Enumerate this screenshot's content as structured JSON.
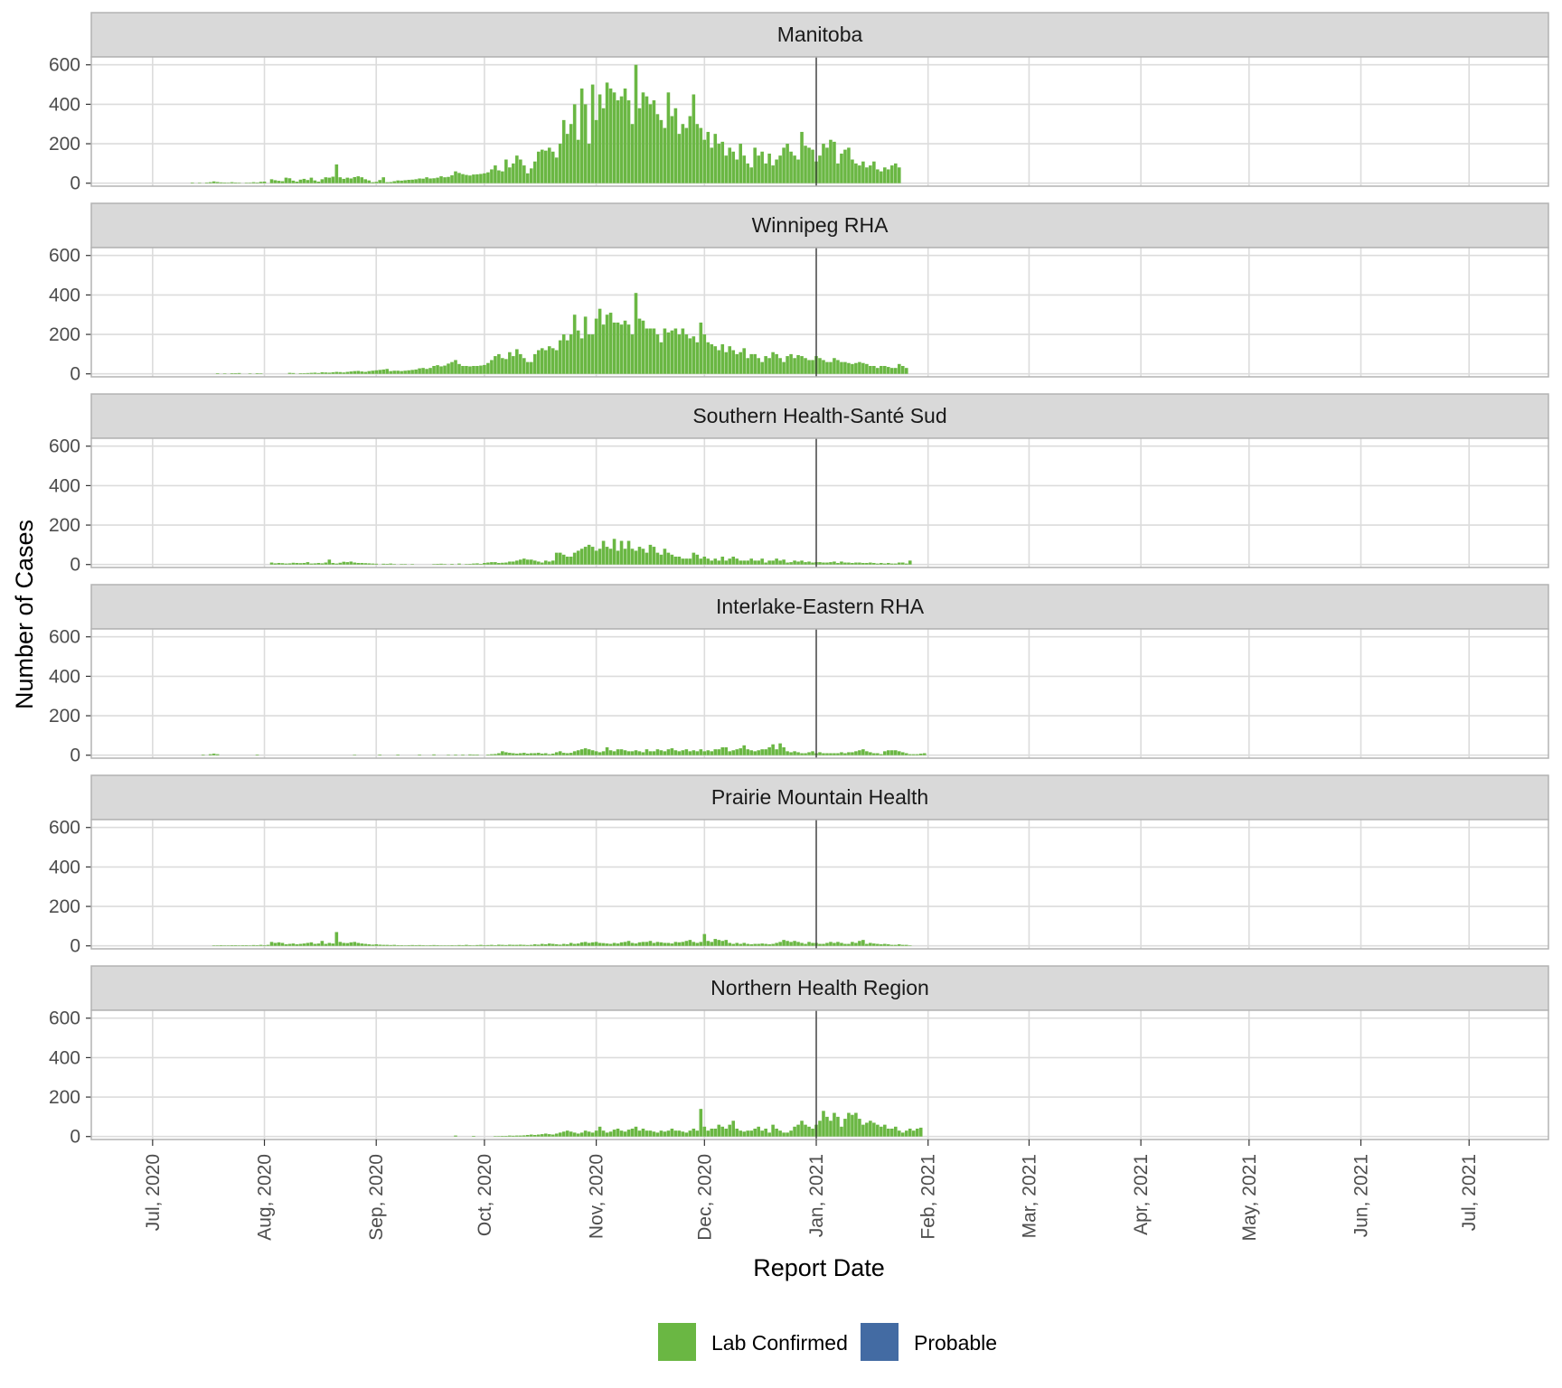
{
  "chart_data": {
    "type": "bar",
    "xlabel": "Report Date",
    "ylabel": "Number of Cases",
    "xlim": [
      "2020-06-14",
      "2021-07-23"
    ],
    "ylim": [
      -15,
      640
    ],
    "y_ticks": [
      0,
      200,
      400,
      600
    ],
    "x_ticks": [
      {
        "date": "2020-07-01",
        "label": "Jul, 2020"
      },
      {
        "date": "2020-08-01",
        "label": "Aug, 2020"
      },
      {
        "date": "2020-09-01",
        "label": "Sep, 2020"
      },
      {
        "date": "2020-10-01",
        "label": "Oct, 2020"
      },
      {
        "date": "2020-11-01",
        "label": "Nov, 2020"
      },
      {
        "date": "2020-12-01",
        "label": "Dec, 2020"
      },
      {
        "date": "2021-01-01",
        "label": "Jan, 2021"
      },
      {
        "date": "2021-02-01",
        "label": "Feb, 2021"
      },
      {
        "date": "2021-03-01",
        "label": "Mar, 2021"
      },
      {
        "date": "2021-04-01",
        "label": "Apr, 2021"
      },
      {
        "date": "2021-05-01",
        "label": "May, 2021"
      },
      {
        "date": "2021-06-01",
        "label": "Jun, 2021"
      },
      {
        "date": "2021-07-01",
        "label": "Jul, 2021"
      }
    ],
    "reference_line_date": "2021-01-01",
    "grid": true,
    "legend_position": "bottom",
    "legend": [
      {
        "label": "Lab Confirmed",
        "color": "#6ab743"
      },
      {
        "label": "Probable",
        "color": "#436ba3"
      }
    ],
    "series_start_date": "2020-07-12",
    "panels": [
      {
        "title": "Manitoba",
        "values": [
          3,
          0,
          2,
          0,
          3,
          5,
          9,
          6,
          4,
          3,
          2,
          5,
          3,
          2,
          0,
          1,
          2,
          5,
          3,
          7,
          8,
          0,
          20,
          15,
          12,
          10,
          28,
          25,
          13,
          8,
          18,
          22,
          16,
          28,
          14,
          8,
          20,
          30,
          28,
          33,
          95,
          30,
          22,
          28,
          24,
          31,
          35,
          30,
          20,
          14,
          5,
          7,
          16,
          30,
          5,
          6,
          10,
          14,
          13,
          15,
          17,
          18,
          20,
          24,
          23,
          30,
          24,
          25,
          28,
          35,
          30,
          32,
          40,
          60,
          52,
          46,
          42,
          39,
          44,
          45,
          47,
          50,
          55,
          70,
          90,
          65,
          60,
          120,
          80,
          100,
          140,
          120,
          90,
          50,
          75,
          110,
          160,
          170,
          165,
          180,
          160,
          130,
          200,
          320,
          250,
          300,
          400,
          220,
          480,
          400,
          200,
          500,
          320,
          450,
          380,
          510,
          480,
          460,
          420,
          440,
          480,
          420,
          300,
          600,
          380,
          460,
          440,
          400,
          420,
          350,
          320,
          280,
          460,
          340,
          380,
          250,
          300,
          280,
          340,
          450,
          300,
          280,
          220,
          260,
          180,
          250,
          200,
          210,
          140,
          180,
          160,
          120,
          200,
          140,
          100,
          80,
          180,
          140,
          160,
          100,
          150,
          90,
          120,
          140,
          180,
          200,
          160,
          140,
          120,
          260,
          190,
          180,
          170,
          110,
          140,
          200,
          180,
          220,
          210,
          100,
          150,
          170,
          180,
          120,
          100,
          90,
          110,
          80,
          90,
          110,
          70,
          60,
          80,
          70,
          90,
          100,
          80
        ]
      },
      {
        "title": "Winnipeg RHA",
        "values": [
          0,
          0,
          0,
          0,
          0,
          0,
          0,
          3,
          0,
          2,
          0,
          3,
          3,
          4,
          0,
          0,
          2,
          0,
          3,
          2,
          0,
          0,
          0,
          0,
          0,
          0,
          0,
          5,
          4,
          0,
          3,
          3,
          4,
          5,
          6,
          4,
          8,
          7,
          6,
          8,
          10,
          9,
          7,
          10,
          12,
          14,
          15,
          12,
          10,
          14,
          16,
          18,
          20,
          22,
          25,
          14,
          16,
          16,
          14,
          16,
          18,
          20,
          22,
          28,
          30,
          25,
          30,
          40,
          44,
          38,
          42,
          52,
          60,
          70,
          50,
          40,
          40,
          38,
          40,
          40,
          42,
          45,
          55,
          70,
          90,
          100,
          80,
          75,
          110,
          90,
          125,
          100,
          80,
          60,
          60,
          100,
          120,
          130,
          120,
          140,
          130,
          120,
          170,
          200,
          170,
          200,
          300,
          220,
          180,
          290,
          200,
          200,
          280,
          330,
          250,
          300,
          310,
          260,
          260,
          250,
          270,
          250,
          200,
          410,
          280,
          270,
          230,
          230,
          230,
          200,
          160,
          230,
          210,
          220,
          230,
          200,
          230,
          200,
          180,
          190,
          160,
          260,
          200,
          160,
          150,
          140,
          120,
          150,
          110,
          140,
          120,
          100,
          110,
          130,
          80,
          100,
          100,
          80,
          60,
          90,
          80,
          110,
          100,
          80,
          60,
          90,
          100,
          80,
          95,
          90,
          80,
          70,
          70,
          90,
          80,
          70,
          60,
          60,
          80,
          70,
          60,
          60,
          55,
          50,
          55,
          60,
          55,
          50,
          40,
          40,
          30,
          40,
          40,
          35,
          30,
          30,
          50,
          40,
          30
        ]
      },
      {
        "title": "Southern Health-Santé Sud",
        "values": [
          0,
          0,
          0,
          0,
          0,
          0,
          0,
          0,
          0,
          0,
          0,
          0,
          0,
          0,
          0,
          0,
          0,
          0,
          0,
          0,
          0,
          0,
          10,
          6,
          8,
          7,
          5,
          6,
          9,
          8,
          7,
          8,
          12,
          5,
          6,
          8,
          6,
          10,
          25,
          8,
          5,
          9,
          14,
          12,
          15,
          10,
          8,
          8,
          7,
          6,
          5,
          4,
          0,
          4,
          3,
          5,
          2,
          0,
          2,
          2,
          0,
          2,
          0,
          0,
          0,
          0,
          0,
          2,
          3,
          4,
          2,
          0,
          3,
          0,
          5,
          0,
          2,
          3,
          5,
          6,
          3,
          8,
          10,
          12,
          12,
          8,
          9,
          10,
          15,
          15,
          20,
          25,
          30,
          25,
          25,
          20,
          15,
          10,
          20,
          15,
          20,
          60,
          60,
          50,
          40,
          40,
          60,
          70,
          80,
          90,
          100,
          90,
          70,
          80,
          120,
          90,
          80,
          130,
          70,
          120,
          80,
          120,
          80,
          70,
          90,
          80,
          60,
          100,
          90,
          60,
          50,
          80,
          60,
          50,
          40,
          40,
          30,
          30,
          30,
          60,
          50,
          30,
          40,
          30,
          20,
          30,
          20,
          40,
          20,
          30,
          40,
          30,
          20,
          20,
          20,
          30,
          20,
          20,
          30,
          10,
          20,
          20,
          30,
          20,
          25,
          10,
          12,
          20,
          15,
          20,
          12,
          15,
          10,
          12,
          12,
          10,
          10,
          12,
          15,
          8,
          15,
          10,
          10,
          8,
          10,
          10,
          8,
          8,
          10,
          8,
          5,
          8,
          5,
          8,
          5,
          5,
          10,
          10,
          5,
          20
        ]
      },
      {
        "title": "Interlake-Eastern RHA",
        "values": [
          0,
          0,
          0,
          3,
          0,
          5,
          8,
          5,
          0,
          0,
          0,
          0,
          0,
          0,
          0,
          0,
          0,
          0,
          3,
          0,
          0,
          0,
          0,
          0,
          0,
          0,
          0,
          0,
          0,
          0,
          0,
          0,
          0,
          0,
          0,
          0,
          0,
          0,
          0,
          0,
          0,
          0,
          0,
          0,
          0,
          2,
          0,
          0,
          0,
          0,
          0,
          0,
          3,
          0,
          0,
          0,
          0,
          3,
          0,
          0,
          0,
          0,
          0,
          3,
          0,
          0,
          0,
          4,
          0,
          0,
          0,
          2,
          0,
          3,
          0,
          3,
          0,
          4,
          3,
          3,
          0,
          0,
          3,
          5,
          6,
          10,
          20,
          15,
          12,
          10,
          8,
          10,
          12,
          8,
          10,
          10,
          12,
          8,
          10,
          5,
          8,
          15,
          20,
          12,
          10,
          12,
          20,
          25,
          30,
          35,
          30,
          25,
          20,
          15,
          20,
          40,
          25,
          20,
          30,
          30,
          25,
          20,
          20,
          25,
          20,
          15,
          30,
          20,
          20,
          30,
          25,
          20,
          30,
          35,
          25,
          20,
          25,
          30,
          20,
          25,
          20,
          30,
          20,
          25,
          20,
          30,
          30,
          40,
          40,
          20,
          25,
          30,
          35,
          50,
          30,
          25,
          20,
          25,
          30,
          30,
          40,
          55,
          30,
          60,
          40,
          20,
          15,
          20,
          15,
          10,
          10,
          15,
          20,
          10,
          15,
          10,
          10,
          10,
          10,
          10,
          15,
          10,
          15,
          15,
          20,
          25,
          30,
          20,
          15,
          10,
          10,
          5,
          20,
          25,
          25,
          25,
          20,
          15,
          10,
          5,
          5,
          5,
          8,
          10
        ]
      },
      {
        "title": "Prairie Mountain Health",
        "values": [
          0,
          0,
          0,
          0,
          0,
          0,
          2,
          2,
          3,
          2,
          2,
          3,
          3,
          2,
          3,
          3,
          2,
          4,
          3,
          5,
          3,
          5,
          20,
          15,
          18,
          15,
          8,
          10,
          12,
          8,
          10,
          12,
          15,
          18,
          10,
          12,
          25,
          10,
          15,
          12,
          70,
          20,
          15,
          14,
          18,
          20,
          15,
          12,
          10,
          8,
          6,
          8,
          6,
          5,
          5,
          4,
          5,
          3,
          3,
          2,
          3,
          4,
          3,
          4,
          3,
          2,
          3,
          4,
          3,
          2,
          2,
          2,
          3,
          2,
          4,
          3,
          5,
          3,
          2,
          4,
          5,
          3,
          4,
          5,
          3,
          6,
          5,
          4,
          6,
          5,
          5,
          6,
          5,
          4,
          5,
          8,
          6,
          10,
          8,
          12,
          10,
          8,
          6,
          10,
          8,
          15,
          10,
          12,
          18,
          20,
          15,
          18,
          20,
          15,
          14,
          12,
          10,
          15,
          12,
          18,
          20,
          25,
          15,
          12,
          18,
          20,
          20,
          25,
          15,
          20,
          18,
          15,
          15,
          12,
          20,
          18,
          20,
          25,
          30,
          20,
          15,
          20,
          60,
          25,
          20,
          35,
          30,
          25,
          30,
          15,
          10,
          15,
          10,
          15,
          10,
          8,
          10,
          10,
          12,
          10,
          8,
          10,
          15,
          20,
          30,
          25,
          20,
          25,
          20,
          15,
          10,
          20,
          15,
          15,
          10,
          10,
          15,
          20,
          15,
          20,
          15,
          10,
          10,
          20,
          15,
          25,
          30,
          10,
          15,
          12,
          10,
          8,
          10,
          8,
          5,
          5,
          8,
          5,
          5,
          2
        ]
      },
      {
        "title": "Northern Health Region",
        "values": [
          0,
          0,
          0,
          0,
          0,
          0,
          0,
          0,
          0,
          0,
          0,
          0,
          0,
          0,
          0,
          0,
          0,
          0,
          0,
          0,
          0,
          0,
          0,
          0,
          0,
          0,
          0,
          0,
          0,
          0,
          0,
          0,
          0,
          0,
          0,
          0,
          0,
          0,
          0,
          0,
          0,
          0,
          0,
          0,
          0,
          0,
          0,
          0,
          0,
          0,
          0,
          0,
          0,
          0,
          0,
          0,
          0,
          0,
          0,
          0,
          0,
          0,
          0,
          0,
          0,
          0,
          0,
          0,
          0,
          0,
          0,
          0,
          0,
          5,
          0,
          0,
          0,
          0,
          3,
          0,
          0,
          0,
          0,
          0,
          2,
          2,
          3,
          3,
          5,
          4,
          5,
          5,
          6,
          8,
          10,
          8,
          10,
          12,
          15,
          12,
          10,
          15,
          20,
          25,
          30,
          25,
          20,
          15,
          20,
          30,
          25,
          20,
          30,
          50,
          30,
          20,
          25,
          35,
          40,
          30,
          25,
          35,
          40,
          50,
          30,
          40,
          30,
          30,
          25,
          20,
          30,
          25,
          30,
          40,
          30,
          30,
          25,
          20,
          30,
          40,
          30,
          140,
          50,
          30,
          40,
          40,
          60,
          50,
          40,
          60,
          80,
          40,
          30,
          25,
          30,
          30,
          40,
          50,
          30,
          40,
          20,
          60,
          40,
          30,
          20,
          20,
          30,
          50,
          60,
          80,
          60,
          50,
          40,
          60,
          80,
          130,
          100,
          80,
          120,
          100,
          50,
          90,
          120,
          110,
          120,
          90,
          60,
          70,
          80,
          70,
          60,
          50,
          60,
          40,
          40,
          50,
          30,
          20,
          30,
          40,
          30,
          40,
          45
        ]
      }
    ]
  }
}
